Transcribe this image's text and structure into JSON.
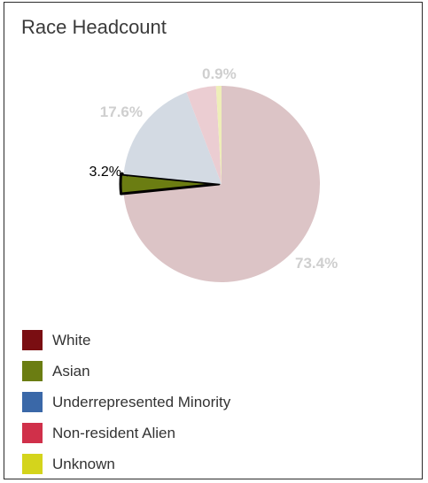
{
  "chart_data": {
    "type": "pie",
    "title": "Race Headcount",
    "slices": [
      {
        "label": "White",
        "value": 73.4,
        "display": "73.4%",
        "color": "#dcc4c6",
        "legend_color": "#7a0e12"
      },
      {
        "label": "Asian",
        "value": 3.2,
        "display": "3.2%",
        "color": "#6b7d12",
        "legend_color": "#6b7d12",
        "highlighted": true
      },
      {
        "label": "Underrepresented Minority",
        "value": 17.6,
        "display": "17.6%",
        "color": "#d3dae3",
        "legend_color": "#3a68a8"
      },
      {
        "label": "Non-resident Alien",
        "value": 4.9,
        "display": "",
        "color": "#ebcdd2",
        "legend_color": "#d0304a"
      },
      {
        "label": "Unknown",
        "value": 0.9,
        "display": "0.9%",
        "color": "#eeeeb8",
        "legend_color": "#d4d41c"
      }
    ],
    "legend_position": "bottom-left"
  }
}
